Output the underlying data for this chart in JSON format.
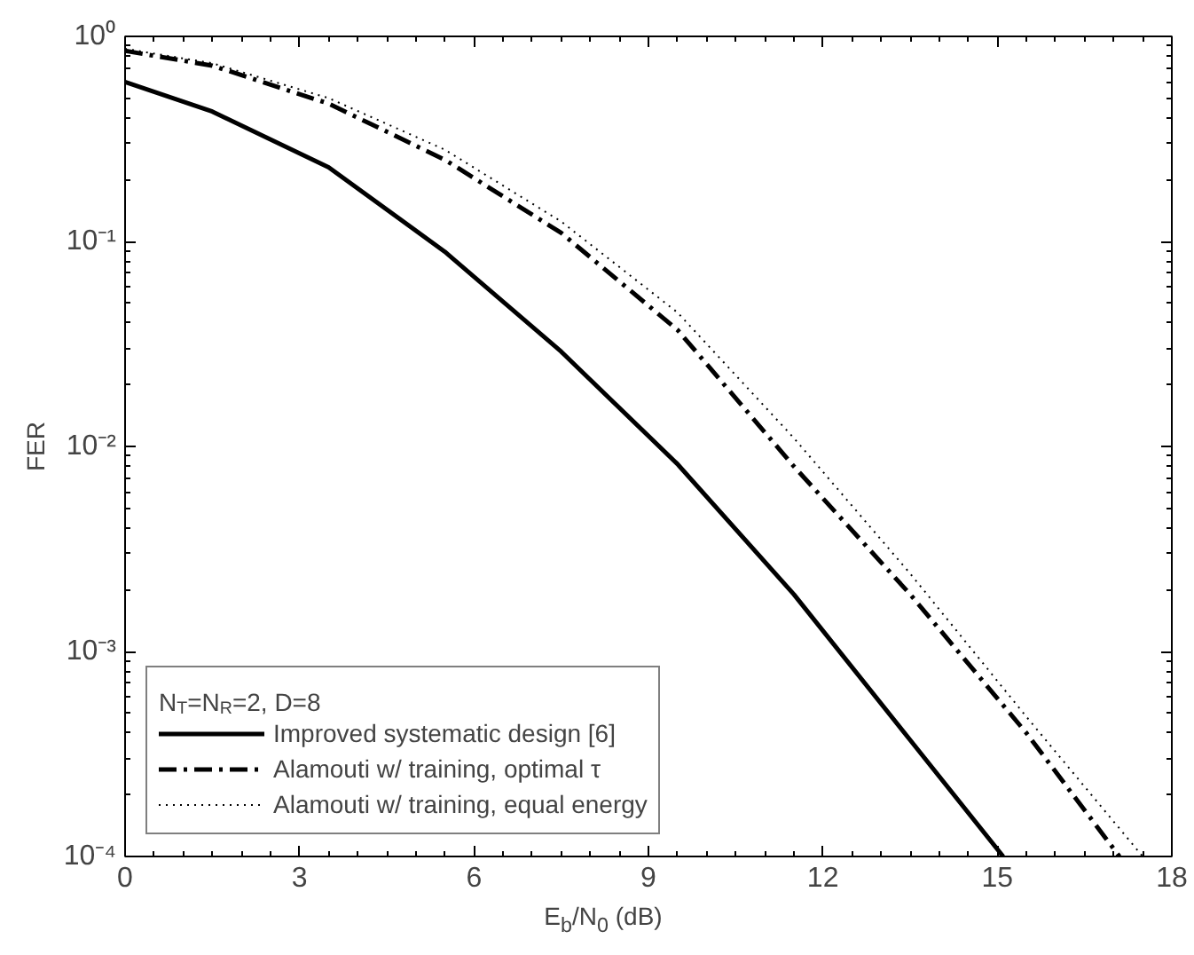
{
  "chart_data": {
    "type": "line",
    "xlabel": "E$_{b}$/N$_{0}$ (dB)",
    "ylabel": "FER",
    "legend_title": "N$_{T}$=N$_{R}$=2, D=8",
    "log": "y",
    "grid": false,
    "legend": "bottom left",
    "xlim": [
      0,
      18
    ],
    "xticks": [
      0,
      3,
      6,
      9,
      12,
      15,
      18
    ],
    "ylim": [
      0.0001,
      1
    ],
    "yticks": [
      {
        "value": 0.0001,
        "label": "10⁻⁴"
      },
      {
        "value": 0.001,
        "label": "10⁻³"
      },
      {
        "value": 0.01,
        "label": "10⁻²"
      },
      {
        "value": 0.1,
        "label": "10⁻¹"
      },
      {
        "value": 1,
        "label": "10⁰"
      }
    ],
    "series": [
      {
        "name": "Improved systematic design [6]",
        "color": "#000000",
        "line_style": "solid",
        "x": [
          0,
          1.5,
          3.5,
          5.5,
          7.5,
          9.5,
          11.5,
          13.5,
          15.1
        ],
        "values": [
          0.6,
          0.43,
          0.23,
          0.089,
          0.029,
          0.0082,
          0.0019,
          0.00037,
          0.0001
        ]
      },
      {
        "name": "Alamouti w/ training, optimal τ",
        "color": "#000000",
        "line_style": "dashdot",
        "x": [
          0,
          1.5,
          3.5,
          5.5,
          7.5,
          9.5,
          11.5,
          13.5,
          15.5,
          17.1
        ],
        "values": [
          0.85,
          0.72,
          0.47,
          0.25,
          0.11,
          0.037,
          0.008,
          0.0019,
          0.0004,
          0.0001
        ]
      },
      {
        "name": "Alamouti w/ training, equal energy",
        "color": "#000000",
        "line_style": "dotted",
        "x": [
          0,
          1.5,
          3.5,
          5.5,
          7.5,
          9.5,
          11.5,
          13.5,
          15.5,
          17.5
        ],
        "values": [
          0.87,
          0.74,
          0.5,
          0.28,
          0.125,
          0.045,
          0.011,
          0.0024,
          0.00048,
          0.0001
        ]
      }
    ]
  }
}
